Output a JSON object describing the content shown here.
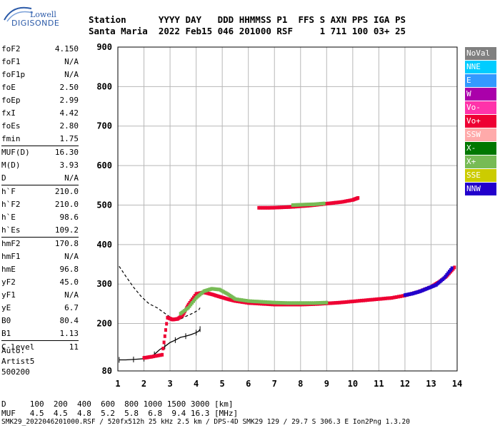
{
  "logo": {
    "line1": "Lowell",
    "line2": "DIGISONDE"
  },
  "header": {
    "line1": "Station      YYYY DAY   DDD HHMMSS P1  FFS S AXN PPS IGA PS",
    "line2": "Santa Maria  2022 Feb15 046 201000 RSF     1 711 100 03+ 25"
  },
  "params": {
    "group1": [
      {
        "name": "foF2",
        "value": "4.150"
      },
      {
        "name": "foF1",
        "value": "N/A"
      },
      {
        "name": "foF1p",
        "value": "N/A"
      },
      {
        "name": "foE",
        "value": "2.50"
      },
      {
        "name": "foEp",
        "value": "2.99"
      },
      {
        "name": "fxI",
        "value": "4.42"
      },
      {
        "name": "foEs",
        "value": "2.80"
      },
      {
        "name": "fmin",
        "value": "1.75"
      }
    ],
    "group2": [
      {
        "name": "MUF(D)",
        "value": "16.30"
      },
      {
        "name": "M(D)",
        "value": "3.93"
      },
      {
        "name": "D",
        "value": "N/A"
      }
    ],
    "group3": [
      {
        "name": "h`F",
        "value": "210.0"
      },
      {
        "name": "h`F2",
        "value": "210.0"
      },
      {
        "name": "h`E",
        "value": "98.6"
      },
      {
        "name": "h`Es",
        "value": "109.2"
      }
    ],
    "group4": [
      {
        "name": "hmF2",
        "value": "170.8"
      },
      {
        "name": "hmF1",
        "value": "N/A"
      },
      {
        "name": "hmE",
        "value": "96.8"
      },
      {
        "name": "yF2",
        "value": "45.0"
      },
      {
        "name": "yF1",
        "value": "N/A"
      },
      {
        "name": "yE",
        "value": "6.7"
      },
      {
        "name": "B0",
        "value": "80.4"
      },
      {
        "name": "B1",
        "value": "1.13"
      }
    ],
    "group5": [
      {
        "name": "C-level",
        "value": "11"
      }
    ]
  },
  "auto": {
    "line1": "Auto:",
    "line2": "Artist5",
    "line3": "500200"
  },
  "legend": [
    {
      "label": "NoVal",
      "color": "#808080"
    },
    {
      "label": "NNE",
      "color": "#00ccff"
    },
    {
      "label": "E",
      "color": "#3399ff"
    },
    {
      "label": "W",
      "color": "#aa00aa"
    },
    {
      "label": "Vo-",
      "color": "#ff33aa"
    },
    {
      "label": "Vo+",
      "color": "#ee0033"
    },
    {
      "label": "SSW",
      "color": "#ffaaaa"
    },
    {
      "label": "X-",
      "color": "#007700"
    },
    {
      "label": "X+",
      "color": "#77bb55"
    },
    {
      "label": "SSE",
      "color": "#cccc00"
    },
    {
      "label": "NNW",
      "color": "#2200cc"
    }
  ],
  "bottom": {
    "line1": "D     100  200  400  600  800 1000 1500 3000 [km]",
    "line2": "MUF   4.5  4.5  4.8  5.2  5.8  6.8  9.4 16.3 [MHz]"
  },
  "footer": "SMK29_2022046201000.RSF / 520fx512h 25 kHz 2.5 km / DPS-4D SMK29 129 / 29.7 S 306.3 E Ion2Png 1.3.20",
  "chart_data": {
    "type": "scatter",
    "xlim": [
      1,
      14
    ],
    "ylim": [
      80,
      900
    ],
    "x_ticks": [
      "1",
      "2",
      "3",
      "4",
      "5",
      "6",
      "7",
      "8",
      "9",
      "10",
      "11",
      "12",
      "13",
      "14"
    ],
    "y_ticks": [
      "80",
      "200",
      "300",
      "400",
      "500",
      "600",
      "700",
      "800",
      "900"
    ],
    "grid": true,
    "series": [
      {
        "polarization": "Vo+",
        "color": "#ee0033",
        "x": [
          2.0,
          2.3,
          2.7,
          2.9,
          3.1,
          3.3,
          3.5,
          3.7,
          4.0,
          4.3,
          4.6,
          4.9,
          5.2,
          5.5,
          6.0,
          6.5,
          7.0,
          7.5,
          8.0,
          8.5,
          9.0,
          9.5,
          10.0,
          10.5,
          11.0,
          11.5,
          12.0,
          12.5,
          13.0,
          13.3,
          13.6,
          13.9
        ],
        "y": [
          113,
          116,
          121,
          215,
          210,
          212,
          222,
          248,
          275,
          279,
          274,
          268,
          262,
          257,
          252,
          250,
          248,
          248,
          248,
          249,
          251,
          253,
          256,
          259,
          262,
          265,
          271,
          280,
          293,
          305,
          320,
          342
        ]
      },
      {
        "polarization": "X+",
        "color": "#77bb55",
        "x": [
          3.4,
          3.7,
          4.0,
          4.3,
          4.6,
          4.9,
          5.2,
          5.5,
          6.0,
          6.5,
          7.0,
          7.5,
          8.0,
          8.5,
          9.0
        ],
        "y": [
          225,
          240,
          265,
          282,
          288,
          286,
          275,
          262,
          257,
          255,
          253,
          252,
          252,
          252,
          253
        ]
      },
      {
        "polarization": "NNW",
        "color": "#2200cc",
        "x": [
          12.0,
          12.3,
          12.6,
          12.9,
          13.2,
          13.5,
          13.8
        ],
        "y": [
          272,
          276,
          282,
          290,
          298,
          315,
          340
        ]
      },
      {
        "polarization": "Vo+",
        "color": "#ee0033",
        "x": [
          6.4,
          6.8,
          7.2,
          7.6,
          8.0,
          8.4,
          8.8,
          9.2,
          9.6,
          10.0,
          10.2
        ],
        "y": [
          493,
          493,
          494,
          495,
          497,
          499,
          502,
          505,
          508,
          513,
          518
        ]
      },
      {
        "polarization": "X+",
        "color": "#77bb55",
        "x": [
          7.7,
          8.1,
          8.5,
          8.9
        ],
        "y": [
          500,
          501,
          502,
          504
        ]
      }
    ],
    "profile": {
      "x": [
        1.05,
        1.3,
        1.6,
        1.8,
        2.0,
        2.2,
        2.4,
        2.6,
        2.8,
        3.0,
        3.2,
        3.4,
        3.6,
        3.8,
        4.0,
        4.1,
        4.15
      ],
      "y": [
        108,
        108,
        109,
        110,
        111,
        112,
        122,
        134,
        142,
        152,
        158,
        165,
        168,
        172,
        177,
        181,
        186
      ]
    },
    "virtual_height_trace": {
      "x": [
        1.05,
        1.3,
        1.6,
        1.9,
        2.2,
        2.5,
        2.8,
        3.1,
        3.3,
        3.6,
        3.9,
        4.1,
        4.15
      ],
      "y": [
        345,
        320,
        292,
        268,
        250,
        240,
        226,
        212,
        208,
        218,
        227,
        235,
        240
      ]
    }
  }
}
